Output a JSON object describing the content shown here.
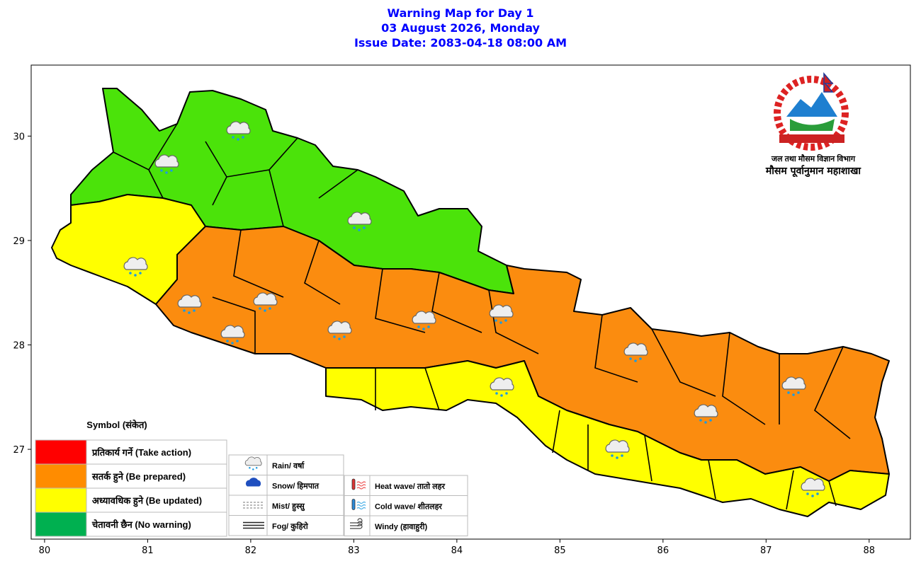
{
  "header": {
    "title": "Warning Map for Day 1",
    "date": "03 August 2026, Monday",
    "issue": "Issue Date: 2083-04-18 08:00 AM"
  },
  "map": {
    "xlim": [
      79.87,
      88.4
    ],
    "ylim": [
      26.14,
      30.68
    ],
    "xticks": [
      80,
      81,
      82,
      83,
      84,
      85,
      86,
      87,
      88
    ],
    "yticks": [
      27,
      28,
      29,
      30
    ]
  },
  "logo": {
    "line1": "जल तथा मौसम विज्ञान विभाग",
    "line2": "मौसम पूर्वानुमान महाशाखा"
  },
  "legend": {
    "title": "Symbol (संकेत)",
    "levels": [
      {
        "label": "प्रतिकार्य गर्ने (Take action)",
        "color": "#ff0000"
      },
      {
        "label": "सतर्क हुने (Be prepared)",
        "color": "#ff8c00"
      },
      {
        "label": "अध्यावधिक हुने (Be updated)",
        "color": "#ffff00"
      },
      {
        "label": "चेतावनी छैन (No warning)",
        "color": "#00b050"
      }
    ],
    "symbols": [
      "Rain/ वर्षा",
      "Snow/ हिमपात",
      "Mist/ हुस्सु",
      "Fog/ कुहिरो"
    ],
    "hazards": [
      "Heat wave/ तातो लहर",
      "Cold wave/ शीतलहर",
      "Windy (हावाहुरी)"
    ]
  }
}
